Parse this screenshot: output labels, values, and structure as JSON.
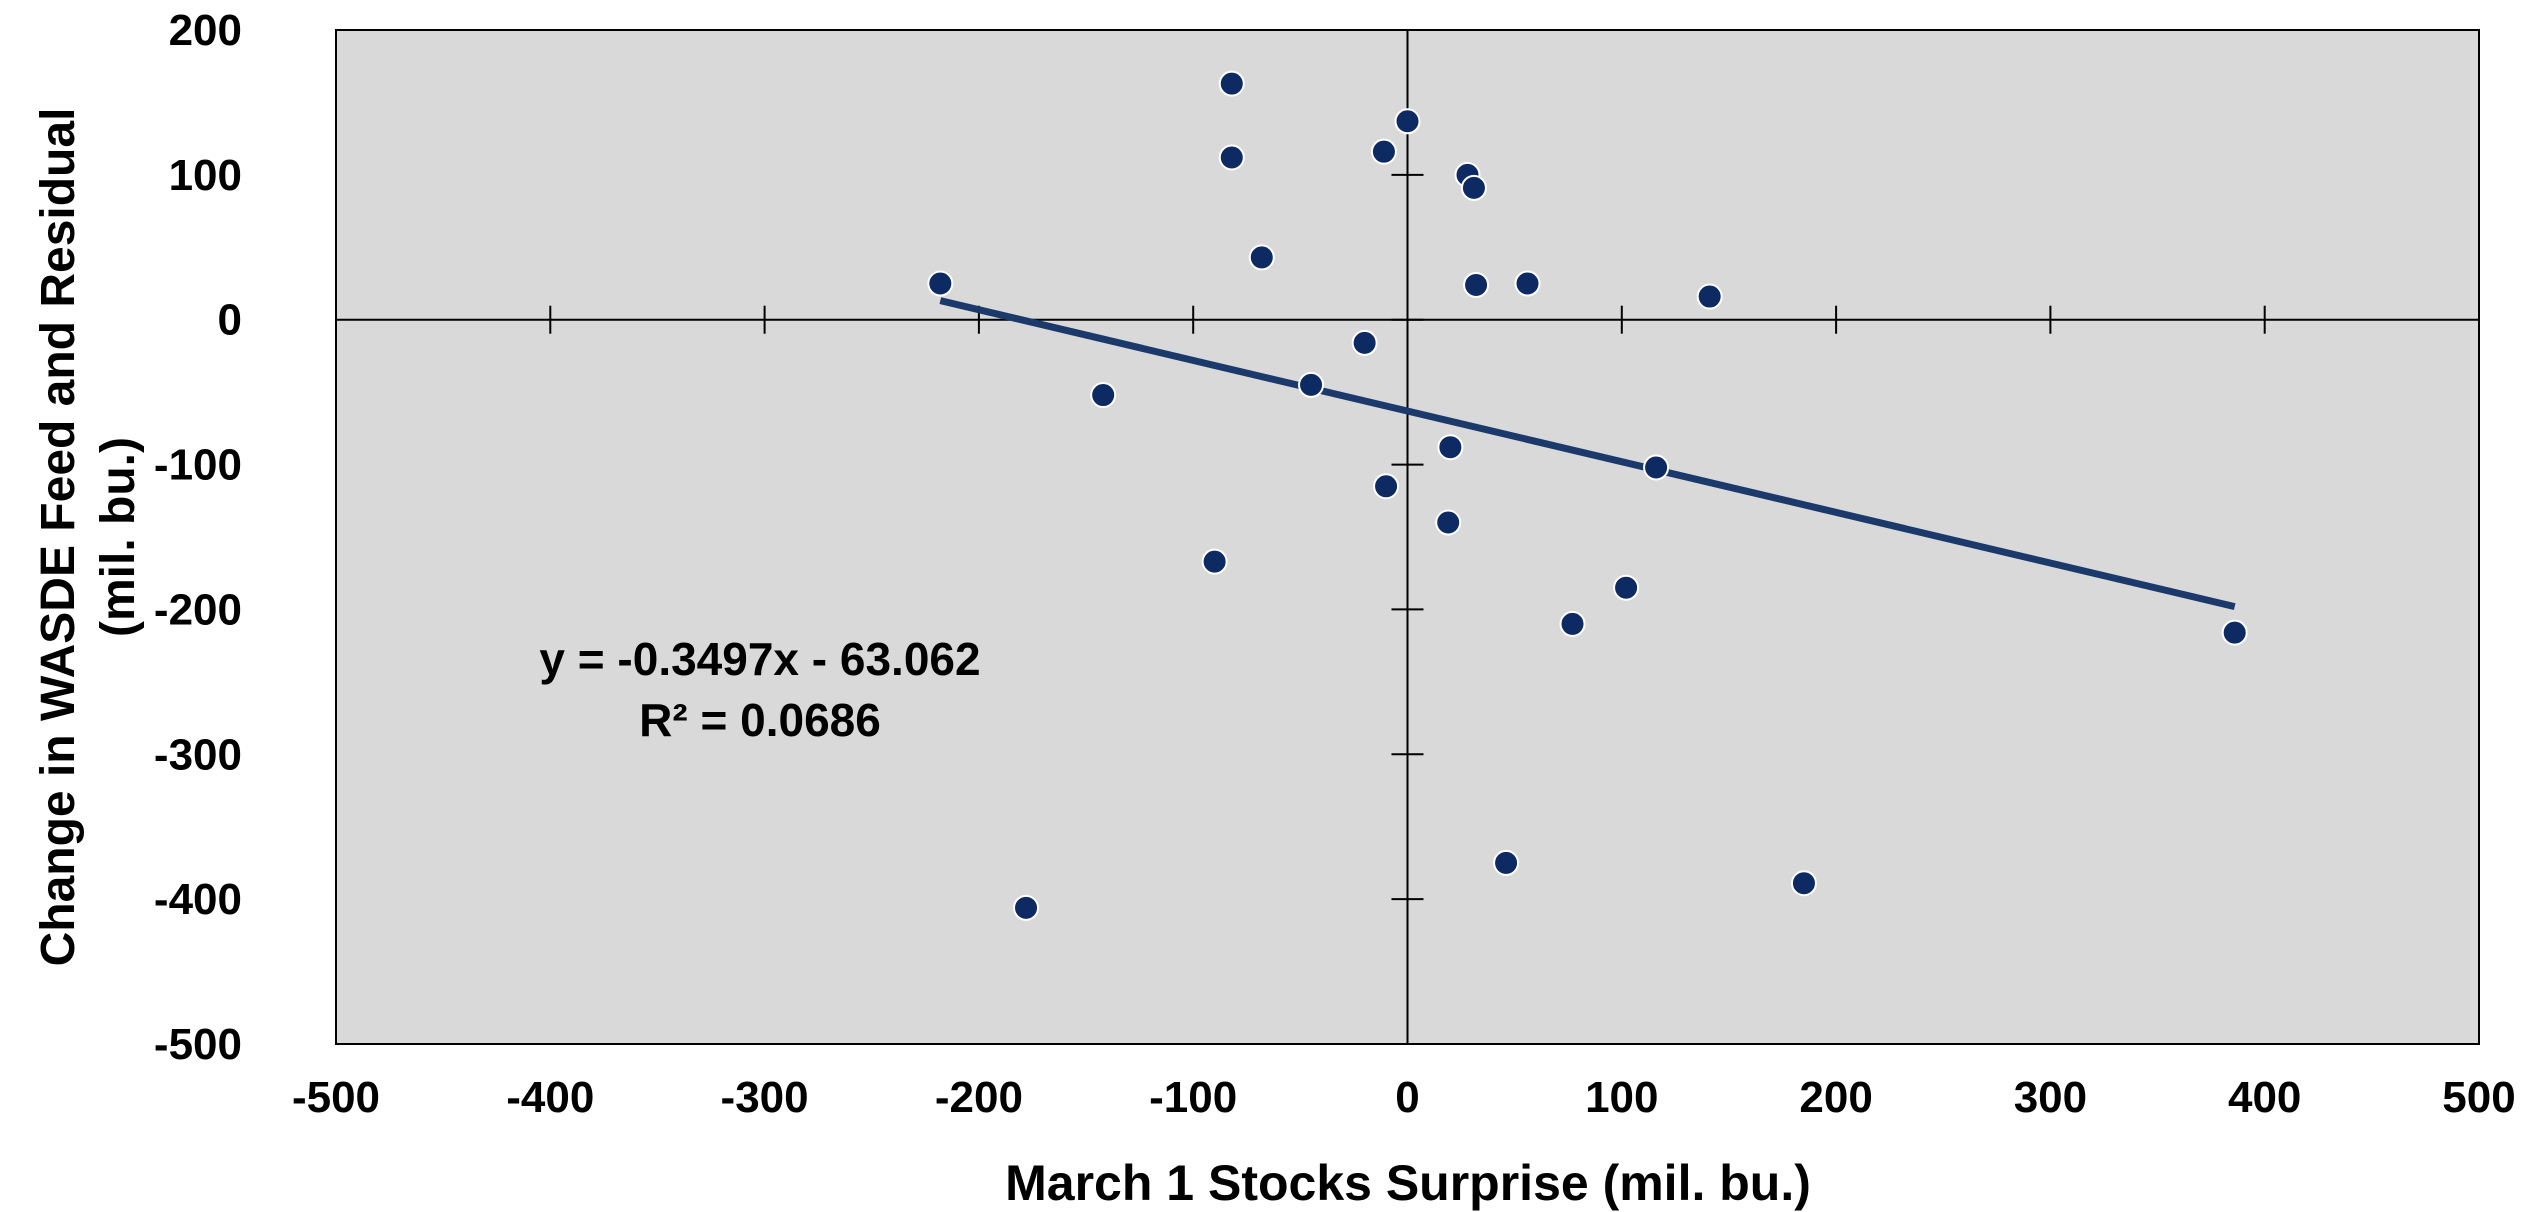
{
  "chart_data": {
    "type": "scatter",
    "xlabel": "March 1 Stocks Surprise (mil. bu.)",
    "ylabel_lines": [
      "Change in WASDE Feed and Residual",
      "(mil. bu.)"
    ],
    "xlim": [
      -500,
      500
    ],
    "ylim": [
      -500,
      200
    ],
    "xticks": [
      -500,
      -400,
      -300,
      -200,
      -100,
      0,
      100,
      200,
      300,
      400,
      500
    ],
    "yticks": [
      -500,
      -400,
      -300,
      -200,
      -100,
      0,
      100,
      200
    ],
    "grid": false,
    "plot_background": "#d9d9d9",
    "point_color": "#0d2a63",
    "line_color": "#1b3a6b",
    "points": [
      {
        "x": -218,
        "y": 25
      },
      {
        "x": -82,
        "y": 163
      },
      {
        "x": -82,
        "y": 112
      },
      {
        "x": -68,
        "y": 43
      },
      {
        "x": -11,
        "y": 116
      },
      {
        "x": 0,
        "y": 137
      },
      {
        "x": 28,
        "y": 100
      },
      {
        "x": 31,
        "y": 91
      },
      {
        "x": 32,
        "y": 24
      },
      {
        "x": 56,
        "y": 25
      },
      {
        "x": 141,
        "y": 16
      },
      {
        "x": -20,
        "y": -16
      },
      {
        "x": -45,
        "y": -45
      },
      {
        "x": -142,
        "y": -52
      },
      {
        "x": 20,
        "y": -88
      },
      {
        "x": -10,
        "y": -115
      },
      {
        "x": 116,
        "y": -102
      },
      {
        "x": 19,
        "y": -140
      },
      {
        "x": -90,
        "y": -167
      },
      {
        "x": 102,
        "y": -185
      },
      {
        "x": 77,
        "y": -210
      },
      {
        "x": 386,
        "y": -216
      },
      {
        "x": 46,
        "y": -375
      },
      {
        "x": 185,
        "y": -389
      },
      {
        "x": -178,
        "y": -406
      }
    ],
    "trendline": {
      "slope": -0.3497,
      "intercept": -63.062,
      "x_range": [
        -218,
        386
      ],
      "equation": "y = -0.3497x - 63.062",
      "r_squared": "R² = 0.0686"
    }
  }
}
